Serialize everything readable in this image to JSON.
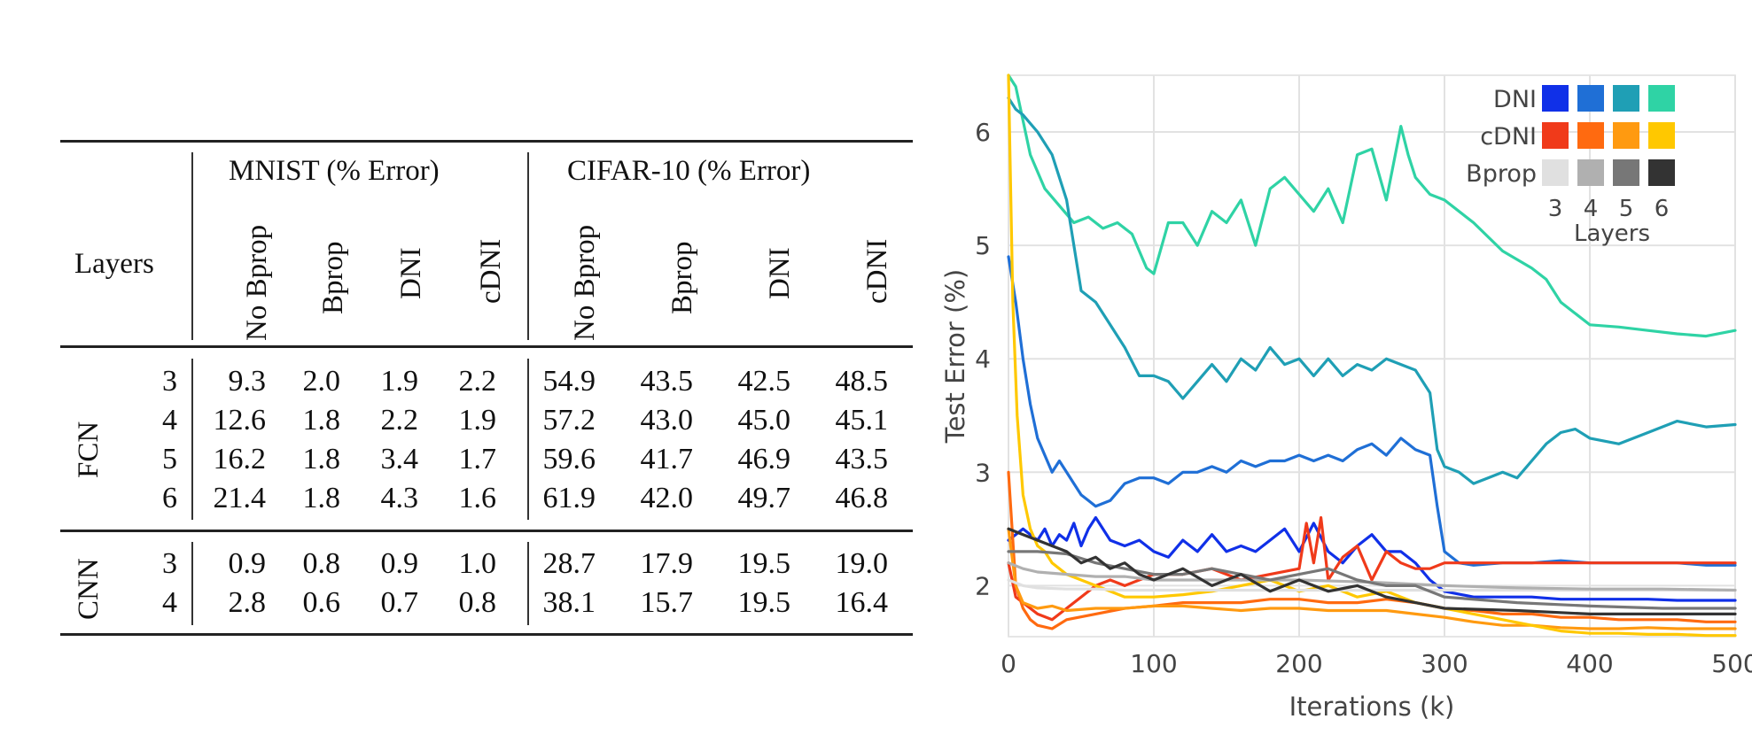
{
  "table": {
    "row_header": "Layers",
    "groups": [
      {
        "label": "MNIST (% Error)",
        "columns": [
          "No Bprop",
          "Bprop",
          "DNI",
          "cDNI"
        ]
      },
      {
        "label": "CIFAR-10 (% Error)",
        "columns": [
          "No Bprop",
          "Bprop",
          "DNI",
          "cDNI"
        ]
      }
    ],
    "sections": [
      {
        "name": "FCN",
        "rows": [
          {
            "layers": "3",
            "values": [
              "9.3",
              "2.0",
              "1.9",
              "2.2",
              "54.9",
              "43.5",
              "42.5",
              "48.5"
            ]
          },
          {
            "layers": "4",
            "values": [
              "12.6",
              "1.8",
              "2.2",
              "1.9",
              "57.2",
              "43.0",
              "45.0",
              "45.1"
            ]
          },
          {
            "layers": "5",
            "values": [
              "16.2",
              "1.8",
              "3.4",
              "1.7",
              "59.6",
              "41.7",
              "46.9",
              "43.5"
            ]
          },
          {
            "layers": "6",
            "values": [
              "21.4",
              "1.8",
              "4.3",
              "1.6",
              "61.9",
              "42.0",
              "49.7",
              "46.8"
            ]
          }
        ]
      },
      {
        "name": "CNN",
        "rows": [
          {
            "layers": "3",
            "values": [
              "0.9",
              "0.8",
              "0.9",
              "1.0",
              "28.7",
              "17.9",
              "19.5",
              "19.0"
            ]
          },
          {
            "layers": "4",
            "values": [
              "2.8",
              "0.6",
              "0.7",
              "0.8",
              "38.1",
              "15.7",
              "19.5",
              "16.4"
            ]
          }
        ]
      }
    ]
  },
  "legend": {
    "rows": [
      {
        "label": "DNI",
        "colors": [
          "#1030e8",
          "#1f6fd6",
          "#1f9fb5",
          "#2fd3a5"
        ]
      },
      {
        "label": "cDNI",
        "colors": [
          "#f03a1a",
          "#ff6a10",
          "#ff9a10",
          "#ffc800"
        ]
      },
      {
        "label": "Bprop",
        "colors": [
          "#e0e0e0",
          "#b0b0b0",
          "#777777",
          "#333333"
        ]
      }
    ],
    "layer_labels": [
      "3",
      "4",
      "5",
      "6"
    ],
    "layers_title": "Layers"
  },
  "chart_data": {
    "type": "line",
    "xlabel": "Iterations (k)",
    "ylabel": "Test Error (%)",
    "xlim": [
      0,
      500
    ],
    "ylim": [
      1.55,
      6.5
    ],
    "xticks": [
      0,
      100,
      200,
      300,
      400,
      500
    ],
    "yticks": [
      2,
      3,
      4,
      5,
      6
    ],
    "grid": true,
    "legend_position": "top-right",
    "series": [
      {
        "name": "DNI 6",
        "color": "#2fd3a5",
        "x": [
          0,
          5,
          10,
          15,
          25,
          35,
          45,
          55,
          65,
          75,
          85,
          95,
          100,
          110,
          120,
          130,
          140,
          150,
          160,
          170,
          180,
          190,
          200,
          210,
          220,
          230,
          240,
          250,
          260,
          270,
          275,
          280,
          290,
          300,
          320,
          340,
          360,
          370,
          380,
          400,
          420,
          440,
          460,
          480,
          500
        ],
        "y": [
          6.5,
          6.4,
          6.1,
          5.8,
          5.5,
          5.35,
          5.2,
          5.25,
          5.15,
          5.2,
          5.1,
          4.8,
          4.75,
          5.2,
          5.2,
          5.0,
          5.3,
          5.2,
          5.4,
          5.0,
          5.5,
          5.6,
          5.45,
          5.3,
          5.5,
          5.2,
          5.8,
          5.85,
          5.4,
          6.05,
          5.8,
          5.6,
          5.45,
          5.4,
          5.2,
          4.95,
          4.8,
          4.7,
          4.5,
          4.3,
          4.28,
          4.25,
          4.22,
          4.2,
          4.25
        ]
      },
      {
        "name": "DNI 5",
        "color": "#1f9fb5",
        "x": [
          0,
          5,
          10,
          20,
          30,
          40,
          50,
          60,
          70,
          80,
          90,
          100,
          110,
          120,
          130,
          140,
          150,
          160,
          170,
          180,
          190,
          200,
          210,
          220,
          230,
          240,
          250,
          260,
          270,
          280,
          290,
          295,
          300,
          310,
          320,
          330,
          340,
          350,
          360,
          370,
          380,
          390,
          400,
          420,
          440,
          460,
          480,
          500
        ],
        "y": [
          6.3,
          6.2,
          6.15,
          6.0,
          5.8,
          5.4,
          4.6,
          4.5,
          4.3,
          4.1,
          3.85,
          3.85,
          3.8,
          3.65,
          3.8,
          3.95,
          3.8,
          4.0,
          3.9,
          4.1,
          3.95,
          4.0,
          3.85,
          4.0,
          3.85,
          3.95,
          3.9,
          4.0,
          3.95,
          3.9,
          3.7,
          3.2,
          3.05,
          3.0,
          2.9,
          2.95,
          3.0,
          2.95,
          3.1,
          3.25,
          3.35,
          3.38,
          3.3,
          3.25,
          3.35,
          3.45,
          3.4,
          3.42
        ]
      },
      {
        "name": "DNI 4",
        "color": "#1f6fd6",
        "x": [
          0,
          5,
          10,
          15,
          20,
          25,
          30,
          35,
          40,
          45,
          50,
          55,
          60,
          70,
          80,
          90,
          100,
          110,
          120,
          130,
          140,
          150,
          160,
          170,
          180,
          190,
          200,
          210,
          220,
          230,
          240,
          250,
          260,
          270,
          280,
          290,
          295,
          300,
          310,
          320,
          340,
          360,
          380,
          400,
          420,
          440,
          460,
          480,
          500
        ],
        "y": [
          4.9,
          4.5,
          4.0,
          3.6,
          3.3,
          3.15,
          3.0,
          3.1,
          3.0,
          2.9,
          2.8,
          2.75,
          2.7,
          2.75,
          2.9,
          2.95,
          2.95,
          2.9,
          3.0,
          3.0,
          3.05,
          3.0,
          3.1,
          3.05,
          3.1,
          3.1,
          3.15,
          3.1,
          3.15,
          3.1,
          3.2,
          3.25,
          3.15,
          3.3,
          3.2,
          3.15,
          2.7,
          2.3,
          2.2,
          2.18,
          2.2,
          2.2,
          2.22,
          2.2,
          2.2,
          2.2,
          2.2,
          2.18,
          2.18
        ]
      },
      {
        "name": "DNI 3",
        "color": "#1030e8",
        "x": [
          0,
          5,
          10,
          15,
          20,
          25,
          30,
          35,
          40,
          45,
          50,
          55,
          60,
          70,
          80,
          90,
          100,
          110,
          120,
          130,
          140,
          150,
          160,
          170,
          180,
          190,
          200,
          210,
          220,
          230,
          240,
          250,
          260,
          270,
          280,
          290,
          300,
          320,
          340,
          360,
          380,
          400,
          420,
          440,
          460,
          480,
          500
        ],
        "y": [
          2.4,
          2.45,
          2.5,
          2.45,
          2.4,
          2.5,
          2.35,
          2.45,
          2.4,
          2.55,
          2.35,
          2.5,
          2.6,
          2.4,
          2.35,
          2.4,
          2.3,
          2.25,
          2.4,
          2.3,
          2.45,
          2.3,
          2.35,
          2.3,
          2.4,
          2.5,
          2.3,
          2.55,
          2.3,
          2.2,
          2.35,
          2.45,
          2.3,
          2.3,
          2.2,
          2.05,
          1.95,
          1.9,
          1.9,
          1.9,
          1.88,
          1.88,
          1.88,
          1.88,
          1.87,
          1.87,
          1.87
        ]
      },
      {
        "name": "cDNI 3",
        "color": "#f03a1a",
        "x": [
          0,
          5,
          10,
          15,
          20,
          30,
          40,
          50,
          60,
          70,
          80,
          100,
          120,
          140,
          160,
          180,
          200,
          205,
          210,
          215,
          220,
          230,
          240,
          250,
          260,
          270,
          280,
          290,
          300,
          320,
          340,
          360,
          380,
          400,
          420,
          440,
          460,
          480,
          500
        ],
        "y": [
          2.2,
          1.9,
          1.85,
          1.8,
          1.75,
          1.7,
          1.8,
          1.9,
          2.0,
          2.05,
          2.0,
          2.1,
          2.1,
          2.15,
          2.05,
          2.1,
          2.15,
          2.55,
          2.2,
          2.6,
          2.05,
          2.25,
          2.35,
          2.05,
          2.3,
          2.2,
          2.15,
          2.15,
          2.2,
          2.2,
          2.2,
          2.2,
          2.2,
          2.2,
          2.2,
          2.2,
          2.2,
          2.2,
          2.2
        ]
      },
      {
        "name": "cDNI 4",
        "color": "#ff6a10",
        "x": [
          0,
          5,
          10,
          15,
          20,
          30,
          40,
          60,
          80,
          100,
          120,
          140,
          160,
          180,
          200,
          220,
          240,
          260,
          280,
          300,
          320,
          340,
          360,
          380,
          400,
          420,
          440,
          460,
          480,
          500
        ],
        "y": [
          3.0,
          2.0,
          1.8,
          1.7,
          1.65,
          1.62,
          1.7,
          1.75,
          1.8,
          1.82,
          1.85,
          1.85,
          1.85,
          1.88,
          1.88,
          1.85,
          1.85,
          1.88,
          1.85,
          1.8,
          1.78,
          1.75,
          1.75,
          1.72,
          1.72,
          1.7,
          1.7,
          1.7,
          1.68,
          1.68
        ]
      },
      {
        "name": "cDNI 5",
        "color": "#ff9a10",
        "x": [
          0,
          5,
          10,
          20,
          30,
          40,
          60,
          80,
          100,
          120,
          140,
          160,
          180,
          200,
          220,
          240,
          260,
          280,
          300,
          320,
          340,
          360,
          380,
          400,
          420,
          440,
          460,
          480,
          500
        ],
        "y": [
          2.5,
          2.0,
          1.85,
          1.8,
          1.82,
          1.78,
          1.8,
          1.8,
          1.82,
          1.82,
          1.8,
          1.78,
          1.8,
          1.8,
          1.78,
          1.78,
          1.78,
          1.75,
          1.72,
          1.68,
          1.65,
          1.65,
          1.63,
          1.62,
          1.62,
          1.63,
          1.62,
          1.62,
          1.62
        ]
      },
      {
        "name": "cDNI 6",
        "color": "#ffc800",
        "x": [
          0,
          3,
          6,
          10,
          15,
          20,
          25,
          30,
          40,
          50,
          60,
          70,
          80,
          100,
          120,
          140,
          160,
          180,
          200,
          220,
          240,
          260,
          280,
          300,
          320,
          340,
          360,
          380,
          400,
          420,
          440,
          460,
          480,
          500
        ],
        "y": [
          6.5,
          4.5,
          3.5,
          2.8,
          2.5,
          2.35,
          2.3,
          2.2,
          2.1,
          2.05,
          2.0,
          1.95,
          1.9,
          1.9,
          1.92,
          1.95,
          2.0,
          2.05,
          1.95,
          2.0,
          1.9,
          1.95,
          1.85,
          1.8,
          1.75,
          1.7,
          1.65,
          1.6,
          1.58,
          1.58,
          1.57,
          1.57,
          1.56,
          1.56
        ]
      },
      {
        "name": "Bprop 3",
        "color": "#e0e0e0",
        "x": [
          0,
          10,
          20,
          40,
          60,
          80,
          100,
          150,
          200,
          250,
          300,
          350,
          400,
          450,
          500
        ],
        "y": [
          2.05,
          2.0,
          1.98,
          1.97,
          1.97,
          1.96,
          1.96,
          1.96,
          1.96,
          1.96,
          1.96,
          1.96,
          1.96,
          1.96,
          1.96
        ]
      },
      {
        "name": "Bprop 4",
        "color": "#b0b0b0",
        "x": [
          0,
          10,
          20,
          40,
          60,
          80,
          100,
          150,
          200,
          250,
          300,
          350,
          400,
          450,
          500
        ],
        "y": [
          2.2,
          2.15,
          2.12,
          2.1,
          2.08,
          2.08,
          2.05,
          2.05,
          2.05,
          2.03,
          2.0,
          1.98,
          1.97,
          1.97,
          1.96
        ]
      },
      {
        "name": "Bprop 5",
        "color": "#777777",
        "x": [
          0,
          10,
          20,
          40,
          60,
          80,
          100,
          120,
          140,
          160,
          180,
          200,
          220,
          240,
          260,
          280,
          300,
          350,
          400,
          450,
          500
        ],
        "y": [
          2.3,
          2.3,
          2.3,
          2.28,
          2.2,
          2.15,
          2.1,
          2.1,
          2.15,
          2.1,
          2.05,
          2.1,
          2.15,
          2.05,
          2.0,
          2.0,
          1.9,
          1.85,
          1.82,
          1.8,
          1.8
        ]
      },
      {
        "name": "Bprop 6",
        "color": "#333333",
        "x": [
          0,
          10,
          20,
          30,
          40,
          50,
          60,
          70,
          80,
          90,
          100,
          120,
          140,
          160,
          180,
          200,
          220,
          240,
          260,
          280,
          300,
          350,
          400,
          450,
          500
        ],
        "y": [
          2.5,
          2.45,
          2.4,
          2.35,
          2.3,
          2.2,
          2.25,
          2.15,
          2.2,
          2.1,
          2.05,
          2.15,
          2.0,
          2.1,
          1.95,
          2.05,
          1.95,
          2.0,
          1.9,
          1.85,
          1.8,
          1.78,
          1.75,
          1.75,
          1.75
        ]
      }
    ]
  }
}
